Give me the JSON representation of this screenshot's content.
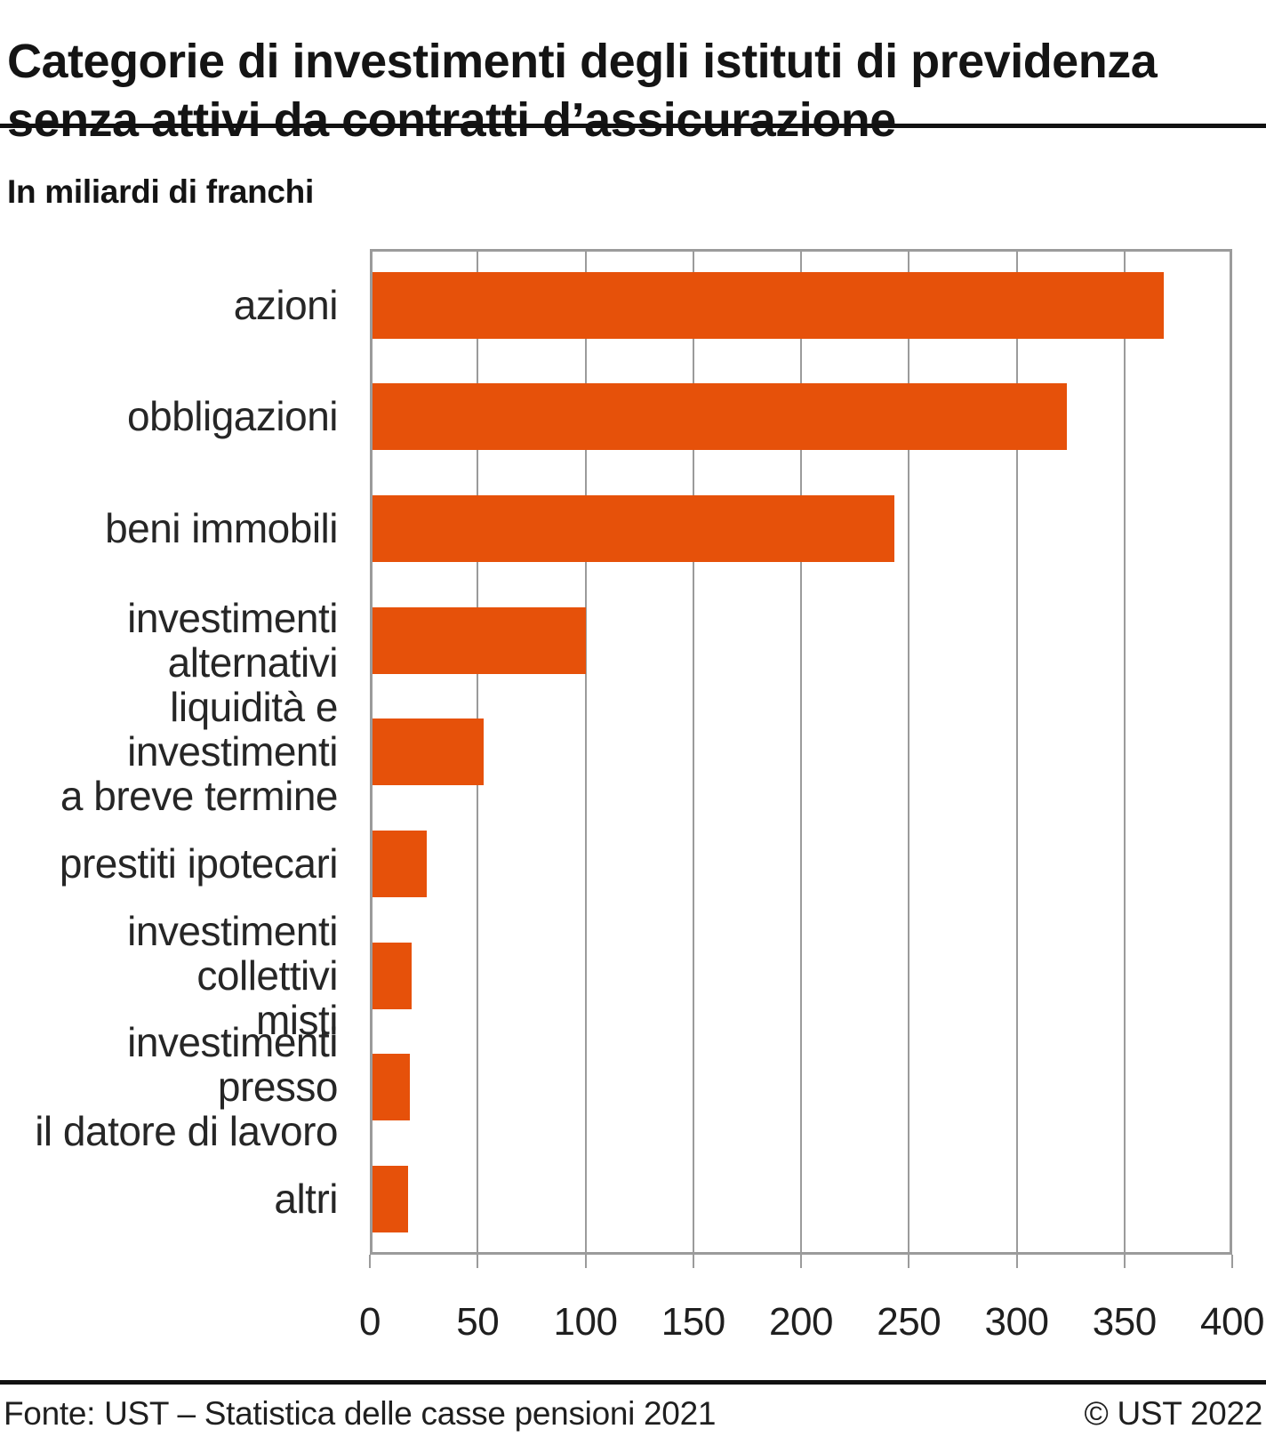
{
  "header": {
    "title_line1": "Categorie di investimenti degli istituti di previdenza",
    "title_line2": "senza attivi da contratti d’assicurazione",
    "subtitle": "In miliardi di franchi"
  },
  "chart_data": {
    "type": "bar",
    "orientation": "horizontal",
    "title": "Categorie di investimenti degli istituti di previdenza senza attivi da contratti d’assicurazione",
    "unit_label": "In miliardi di franchi",
    "categories": [
      "azioni",
      "obbligazioni",
      "beni immobili",
      "investimenti alternativi",
      "liquidità e investimenti\na breve termine",
      "prestiti ipotecari",
      "investimenti collettivi\nmisti",
      "investimenti presso\nil datore di lavoro",
      "altri"
    ],
    "values": [
      367,
      322,
      242,
      99,
      51.5,
      25,
      18,
      17.5,
      16.7
    ],
    "xlim": [
      0,
      400
    ],
    "xticks": [
      0,
      50,
      100,
      150,
      200,
      250,
      300,
      350,
      400
    ],
    "grid": true,
    "legend_position": "none",
    "bar_color": "#E6510A",
    "grid_color": "#9B9B9B"
  },
  "footer": {
    "source": "Fonte: UST – Statistica delle casse pensioni 2021",
    "copyright": "© UST 2022"
  }
}
